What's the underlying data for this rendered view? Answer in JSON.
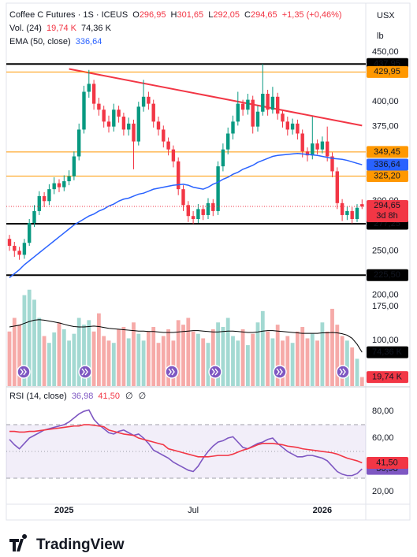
{
  "chart_data": [
    {
      "type": "candlestick",
      "title": "Coffee C Futures · 1S · ICEUS",
      "legend_items": [
        {
          "label": "O",
          "text": "296,95"
        },
        {
          "label": "H",
          "text": "301,65"
        },
        {
          "label": "L",
          "text": "292,05"
        },
        {
          "label": "C",
          "text": "294,65"
        }
      ],
      "change": "+1,35 (+0,46%)",
      "currency": "USX",
      "unit": "lb",
      "categories": [
        null,
        null,
        null,
        null,
        null,
        null,
        null,
        null,
        null,
        null,
        null,
        "2025",
        null,
        null,
        null,
        null,
        null,
        null,
        null,
        null,
        null,
        null,
        null,
        null,
        null,
        null,
        null,
        null,
        null,
        null,
        null,
        null,
        null,
        null,
        null,
        null,
        null,
        "Jul",
        null,
        null,
        null,
        null,
        null,
        null,
        null,
        null,
        null,
        null,
        null,
        null,
        null,
        null,
        null,
        null,
        null,
        null,
        null,
        null,
        null,
        null,
        null,
        null,
        null,
        "2026",
        null,
        null,
        null,
        null,
        null,
        null,
        null,
        null
      ],
      "open": [
        262,
        255,
        250,
        246,
        258,
        278,
        290,
        305,
        300,
        312,
        318,
        314,
        320,
        325,
        345,
        372,
        410,
        418,
        398,
        392,
        380,
        375,
        392,
        385,
        372,
        378,
        360,
        395,
        405,
        398,
        380,
        372,
        360,
        352,
        340,
        312,
        296,
        285,
        282,
        292,
        286,
        298,
        290,
        335,
        352,
        368,
        380,
        398,
        392,
        402,
        375,
        390,
        408,
        392,
        405,
        388,
        380,
        372,
        378,
        368,
        350,
        346,
        358,
        352,
        360,
        345,
        330,
        298,
        286,
        290,
        282,
        296.95
      ],
      "high": [
        266,
        259,
        254,
        262,
        282,
        296,
        310,
        309,
        317,
        324,
        322,
        326,
        331,
        350,
        378,
        416,
        432,
        422,
        404,
        396,
        386,
        398,
        396,
        389,
        384,
        382,
        400,
        422,
        410,
        402,
        385,
        376,
        364,
        356,
        344,
        316,
        300,
        290,
        297,
        296,
        303,
        302,
        340,
        358,
        374,
        386,
        410,
        402,
        408,
        406,
        396,
        438,
        412,
        415,
        409,
        392,
        385,
        383,
        382,
        372,
        354,
        385,
        362,
        365,
        375,
        349,
        334,
        302,
        295,
        294,
        297,
        301.65
      ],
      "low": [
        250,
        244,
        241,
        242,
        255,
        274,
        286,
        294,
        296,
        307,
        309,
        310,
        316,
        321,
        341,
        368,
        404,
        392,
        386,
        374,
        369,
        370,
        379,
        366,
        366,
        332,
        356,
        390,
        392,
        374,
        366,
        354,
        346,
        334,
        306,
        290,
        279,
        277,
        278,
        281,
        282,
        285,
        286,
        330,
        347,
        362,
        376,
        386,
        387,
        368,
        370,
        386,
        386,
        388,
        382,
        374,
        366,
        367,
        362,
        344,
        340,
        342,
        347,
        348,
        340,
        324,
        292,
        280,
        281,
        277.5,
        279,
        292.05
      ],
      "close": [
        255,
        250,
        246,
        258,
        278,
        290,
        305,
        300,
        312,
        318,
        314,
        320,
        325,
        345,
        372,
        410,
        418,
        398,
        392,
        380,
        375,
        392,
        385,
        372,
        378,
        360,
        395,
        405,
        398,
        380,
        372,
        360,
        352,
        340,
        312,
        296,
        285,
        282,
        292,
        286,
        298,
        290,
        335,
        352,
        368,
        380,
        398,
        392,
        402,
        375,
        390,
        408,
        392,
        405,
        388,
        380,
        372,
        378,
        368,
        350,
        346,
        358,
        352,
        360,
        345,
        330,
        298,
        286,
        290,
        282,
        293.3,
        294.65
      ],
      "up_color": "#089981",
      "down_color": "#f23645",
      "ema": {
        "name": "EMA (50, close)",
        "color": "#2962ff",
        "label": "336,64",
        "values": [
          223,
          227,
          231,
          236,
          240,
          244,
          248,
          252,
          256,
          260,
          264,
          268,
          272,
          276,
          279,
          282,
          285,
          287,
          290,
          292,
          295,
          297,
          300,
          302,
          303,
          305,
          307,
          308,
          310,
          312,
          313,
          314,
          315,
          316,
          316.5,
          317,
          316,
          314,
          313,
          312,
          314,
          317,
          319,
          322,
          324,
          327,
          329,
          332,
          334,
          336,
          339,
          341,
          343,
          345,
          346,
          346.5,
          347,
          347.5,
          348,
          347.5,
          347,
          346.5,
          346,
          345,
          344,
          343,
          342.5,
          342,
          341,
          339.5,
          338,
          336.64
        ]
      },
      "trend_line": {
        "color": "#f23645",
        "x": [
          12,
          71
        ],
        "values": [
          433,
          376
        ]
      },
      "levels": [
        {
          "value": 437.95,
          "label": "437,95",
          "color": "#000000",
          "text_color": "#ffffff"
        },
        {
          "value": 429.95,
          "label": "429,95",
          "color": "#ff9800",
          "text_color": "#000000"
        },
        {
          "value": 349.45,
          "label": "349,45",
          "color": "#ff9800",
          "text_color": "#000000"
        },
        {
          "value": 325.2,
          "label": "325,20",
          "color": "#ff9800",
          "text_color": "#000000"
        },
        {
          "value": 277.25,
          "label": "277,25",
          "color": "#000000",
          "text_color": "#ffffff"
        },
        {
          "value": 225.5,
          "label": "225,50",
          "color": "#000000",
          "text_color": "#ffffff"
        }
      ],
      "last_price_label": "294,65",
      "countdown": "3d 8h",
      "ylim": [
        217,
        496
      ],
      "yticks": [
        {
          "value": 450,
          "label": "450,00"
        },
        {
          "value": 400,
          "label": "400,00"
        },
        {
          "value": 375,
          "label": "375,00"
        },
        {
          "value": 300,
          "label": "300,00"
        },
        {
          "value": 250,
          "label": "250,00"
        }
      ]
    },
    {
      "type": "bar",
      "name": "Vol. (24)",
      "values": [
        120,
        150,
        135,
        200,
        212,
        190,
        150,
        110,
        95,
        118,
        140,
        125,
        100,
        115,
        150,
        135,
        145,
        120,
        160,
        110,
        100,
        95,
        125,
        130,
        105,
        140,
        115,
        100,
        120,
        130,
        95,
        110,
        125,
        100,
        145,
        135,
        150,
        120,
        115,
        105,
        95,
        125,
        140,
        130,
        150,
        110,
        100,
        125,
        90,
        115,
        140,
        165,
        120,
        105,
        135,
        100,
        110,
        95,
        120,
        130,
        105,
        115,
        100,
        140,
        120,
        170,
        135,
        110,
        100,
        85,
        60,
        19.74
      ],
      "value_label": "19,74 K",
      "up_color": "#a3d9d2",
      "down_color": "#f6aaa8",
      "label_color": "#f23645",
      "ma": {
        "color": "#000000",
        "label": "74,36 K",
        "values": [
          130,
          132,
          134,
          138,
          142,
          145,
          146,
          145,
          143,
          141,
          139,
          136,
          133,
          131,
          130,
          130,
          131,
          132,
          131,
          129,
          127,
          126,
          125,
          124,
          123,
          122,
          121,
          121,
          120,
          120,
          119,
          118,
          118,
          118,
          119,
          120,
          121,
          122,
          122,
          121,
          120,
          119,
          119,
          120,
          121,
          121,
          120,
          119,
          118,
          118,
          119,
          121,
          122,
          122,
          121,
          120,
          119,
          118,
          117,
          116,
          116,
          116,
          116,
          117,
          117,
          118,
          117,
          115,
          112,
          105,
          92,
          74.36
        ]
      },
      "ylim": [
        0,
        215
      ],
      "yticks": [
        {
          "value": 200,
          "label": "200,00"
        },
        {
          "value": 175,
          "label": "175,00"
        },
        {
          "value": 100,
          "label": "100,00"
        }
      ]
    },
    {
      "type": "line",
      "name": "RSI (14, close)",
      "series": [
        {
          "color": "#7e57c2",
          "label": "36,98",
          "values": [
            59,
            55,
            52,
            56,
            60,
            62,
            64,
            66,
            67,
            68,
            69,
            70,
            72,
            75,
            78,
            80,
            81,
            74,
            70,
            67,
            64,
            63,
            65,
            66,
            64,
            62,
            63,
            60,
            56,
            51,
            49,
            47,
            45,
            42,
            40,
            38,
            36,
            35,
            39,
            45,
            50,
            54,
            57,
            58,
            60,
            61,
            57,
            53,
            52,
            54,
            56,
            57,
            59,
            60,
            56,
            53,
            50,
            48,
            46,
            46,
            47,
            47,
            46,
            45,
            43,
            39,
            35,
            33,
            32,
            32,
            33.5,
            36.98
          ]
        },
        {
          "color": "#f23645",
          "label": "41,50",
          "values": [
            65,
            65,
            64.5,
            64.5,
            65,
            65,
            65.5,
            66,
            66.5,
            67,
            67.5,
            68,
            68.5,
            69,
            69,
            70,
            70,
            69.5,
            69,
            68.5,
            66,
            65,
            64,
            63,
            62.5,
            62,
            60,
            59,
            58,
            57,
            56,
            55,
            52,
            51,
            50,
            49,
            48,
            47,
            46,
            46,
            46,
            46.5,
            47,
            47,
            47,
            48,
            49.5,
            51,
            52,
            53.5,
            55,
            56,
            56,
            56,
            55.5,
            55,
            54,
            53.5,
            53,
            52,
            51.5,
            51,
            50.5,
            50,
            49.5,
            49,
            48,
            46.5,
            45,
            44,
            43,
            41.5
          ]
        }
      ],
      "extra_values": [
        "∅",
        "∅"
      ],
      "levels": [
        70,
        50,
        30
      ],
      "band_color": "#7e57c2",
      "ylim": [
        10.6,
        96.5
      ],
      "yticks": [
        {
          "value": 80,
          "label": "80,00"
        },
        {
          "value": 60,
          "label": "60,00"
        },
        {
          "value": 20,
          "label": "20,00"
        }
      ]
    }
  ],
  "footer": {
    "brand": "TradingView"
  }
}
